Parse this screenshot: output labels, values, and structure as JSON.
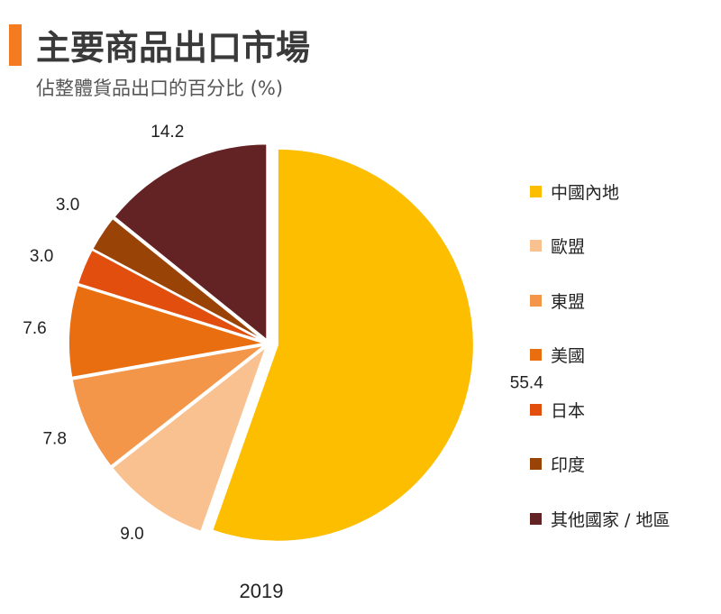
{
  "header": {
    "title": "主要商品出口市場",
    "subtitle": "佔整體貨品出口的百分比 (%)",
    "accent_color": "#F47B20"
  },
  "chart_data": {
    "type": "pie",
    "title": "主要商品出口市場",
    "subtitle": "佔整體貨品出口的百分比 (%)",
    "xlabel": "2019",
    "unit": "%",
    "legend_position": "right",
    "exploded": true,
    "slices": [
      {
        "name": "中國內地",
        "value": 55.4,
        "label": "55.4",
        "color": "#FDBE00"
      },
      {
        "name": "歐盟",
        "value": 9.0,
        "label": "9.0",
        "color": "#F8C18F"
      },
      {
        "name": "東盟",
        "value": 7.8,
        "label": "7.8",
        "color": "#F39649"
      },
      {
        "name": "美國",
        "value": 7.6,
        "label": "7.6",
        "color": "#E86E10"
      },
      {
        "name": "日本",
        "value": 3.0,
        "label": "3.0",
        "color": "#E14E0E"
      },
      {
        "name": "印度",
        "value": 3.0,
        "label": "3.0",
        "color": "#994307"
      },
      {
        "name": "其他國家 / 地區",
        "value": 14.2,
        "label": "14.2",
        "color": "#632324"
      }
    ]
  }
}
